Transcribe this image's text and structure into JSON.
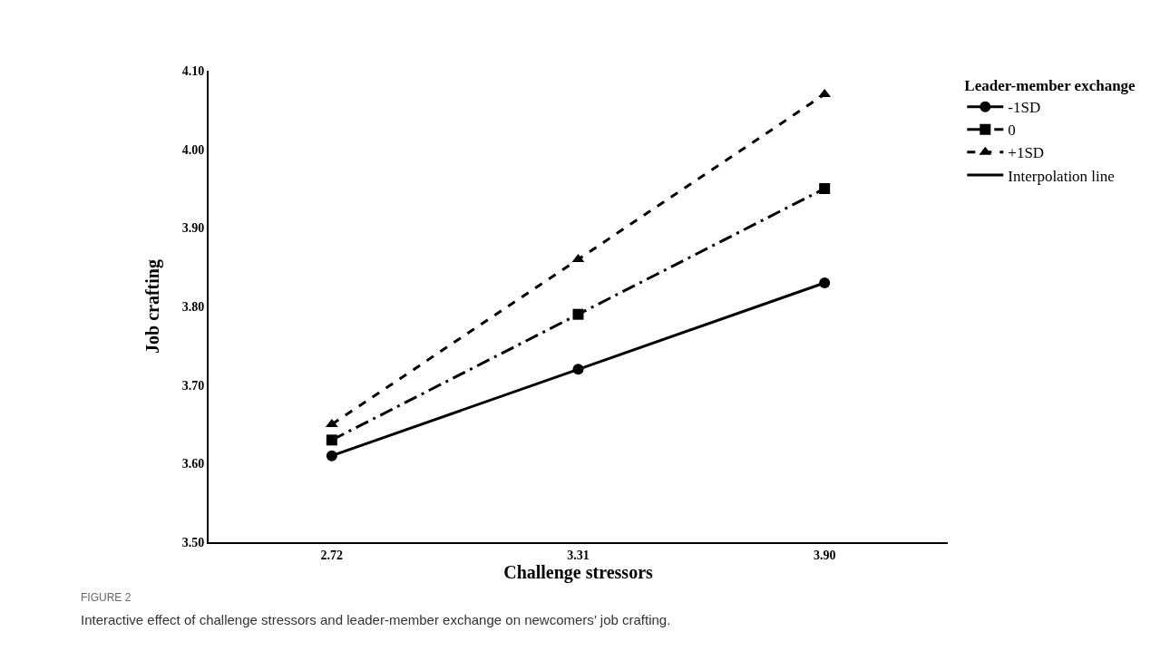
{
  "chart_data": {
    "type": "line",
    "xlabel": "Challenge stressors",
    "ylabel": "Job crafting",
    "legend_title": "Leader-member exchange",
    "categories": [
      "2.72",
      "3.31",
      "3.90"
    ],
    "series": [
      {
        "name": "-1SD",
        "color": "#000000",
        "values": [
          3.61,
          3.72,
          3.83
        ],
        "marker": "circle",
        "line_style": "solid"
      },
      {
        "name": "0",
        "color": "#000000",
        "values": [
          3.63,
          3.79,
          3.95
        ],
        "marker": "square",
        "line_style": "dashdot"
      },
      {
        "name": "+1SD",
        "color": "#000000",
        "values": [
          3.65,
          3.86,
          4.07
        ],
        "marker": "triangle",
        "line_style": "dashed"
      },
      {
        "name": "Interpolation line",
        "color": "#000000",
        "values": [
          null,
          null,
          null
        ],
        "marker": "none",
        "line_style": "solid"
      }
    ],
    "ylim": [
      3.5,
      4.1
    ],
    "yticks": [
      {
        "value": 3.5,
        "label": "3.50"
      },
      {
        "value": 3.6,
        "label": "3.60"
      },
      {
        "value": 3.7,
        "label": "3.70"
      },
      {
        "value": 3.8,
        "label": "3.80"
      },
      {
        "value": 3.9,
        "label": "3.90"
      },
      {
        "value": 4.0,
        "label": "4.00"
      },
      {
        "value": 4.1,
        "label": "4.10"
      }
    ],
    "legend": "top right",
    "annotations": [
      "FIGURE 2",
      "Interactive effect of challenge stressors and leader-member exchange on newcomers’ job crafting."
    ]
  }
}
